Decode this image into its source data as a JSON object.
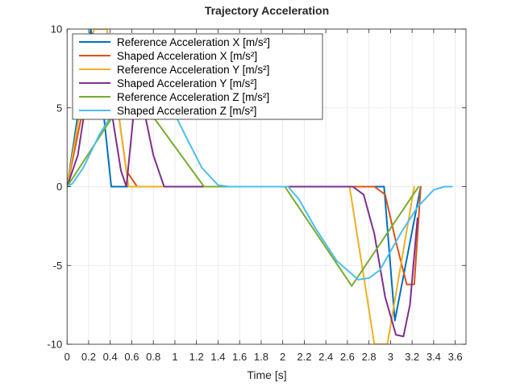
{
  "chart_data": {
    "type": "line",
    "title": "Trajectory Acceleration",
    "xlabel": "Time [s]",
    "ylabel": "",
    "xlim": [
      0,
      3.7
    ],
    "ylim": [
      -10,
      10
    ],
    "xticks": [
      0,
      0.2,
      0.4,
      0.6,
      0.8,
      1,
      1.2,
      1.4,
      1.6,
      1.8,
      2,
      2.2,
      2.4,
      2.6,
      2.8,
      3,
      3.2,
      3.4,
      3.6
    ],
    "xtick_labels": [
      "0",
      "0.2",
      "0.4",
      "0.6",
      "0.8",
      "1",
      "1.2",
      "1.4",
      "1.6",
      "1.8",
      "2",
      "2.2",
      "2.4",
      "2.6",
      "2.8",
      "3",
      "3.2",
      "3.4",
      "3.6"
    ],
    "yticks": [
      -10,
      -5,
      0,
      5,
      10
    ],
    "ytick_labels": [
      "-10",
      "-5",
      "0",
      "5",
      "10"
    ],
    "grid": true,
    "legend_position": "top-left",
    "series": [
      {
        "name": "Reference Acceleration X [m/s²]",
        "color": "#0072BD",
        "x": [
          0,
          0.22,
          0.31,
          0.41,
          2.85,
          2.94,
          3.04,
          3.28
        ],
        "y": [
          0,
          10,
          6.5,
          0,
          0,
          0,
          -8.5,
          0
        ]
      },
      {
        "name": "Shaped Acceleration X [m/s²]",
        "color": "#D95319",
        "x": [
          0,
          0.15,
          0.3,
          0.4,
          0.47,
          0.55,
          0.65,
          2.85,
          2.95,
          3.05,
          3.15,
          3.22,
          3.28
        ],
        "y": [
          0,
          5,
          8.5,
          6.5,
          5,
          1,
          0,
          0,
          -0.5,
          -3.5,
          -6.2,
          -6.2,
          0
        ]
      },
      {
        "name": "Reference Acceleration Y [m/s²]",
        "color": "#EDB120",
        "x": [
          0,
          0.25,
          0.37,
          0.57,
          2.62,
          2.85,
          2.97,
          3.22
        ],
        "y": [
          0,
          10,
          10,
          0,
          0,
          -10,
          -10,
          0
        ]
      },
      {
        "name": "Shaped Acceleration Y [m/s²]",
        "color": "#7E2F8E",
        "x": [
          0,
          0.1,
          0.2,
          0.3,
          0.4,
          0.5,
          0.55,
          0.63,
          0.7,
          0.8,
          0.9,
          2.65,
          2.75,
          2.85,
          2.95,
          3.05,
          3.12,
          3.18,
          3.25
        ],
        "y": [
          0,
          2,
          6.5,
          7.5,
          5.3,
          1,
          0,
          5.5,
          5.3,
          2,
          0,
          0,
          -0.5,
          -3,
          -7,
          -9.4,
          -9.5,
          -7.5,
          -2
        ]
      },
      {
        "name": "Reference Acceleration Z [m/s²]",
        "color": "#77AC30",
        "x": [
          0,
          0.6,
          1.27,
          2.02,
          2.64,
          3.26
        ],
        "y": [
          0,
          6.3,
          0,
          0,
          -6.3,
          0
        ]
      },
      {
        "name": "Shaped Acceleration Z [m/s²]",
        "color": "#4DBEEE",
        "x": [
          0,
          0.05,
          0.15,
          0.3,
          0.5,
          0.65,
          0.8,
          0.95,
          1.1,
          1.25,
          1.4,
          1.5,
          2.05,
          2.15,
          2.3,
          2.5,
          2.7,
          2.8,
          2.9,
          3.0,
          3.1,
          3.25,
          3.4,
          3.5,
          3.57
        ],
        "y": [
          0,
          0.2,
          1.2,
          3.3,
          5.5,
          6.3,
          6.3,
          5.3,
          3.2,
          1.2,
          0.1,
          0,
          0,
          -0.8,
          -2.6,
          -4.7,
          -5.9,
          -5.8,
          -5.3,
          -4.1,
          -2.9,
          -1.3,
          -0.2,
          0,
          0
        ]
      }
    ]
  }
}
